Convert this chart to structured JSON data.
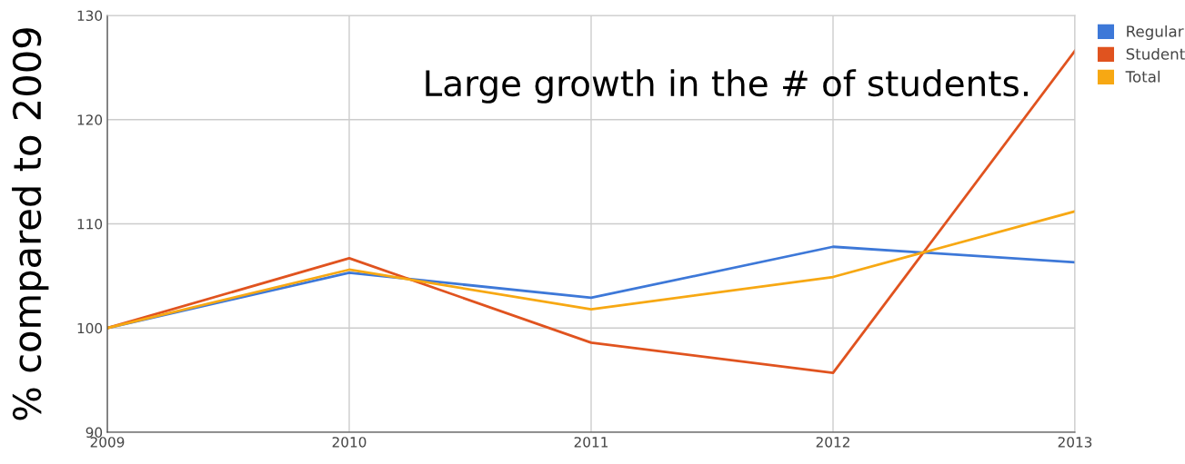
{
  "chart_data": {
    "type": "line",
    "ylabel": "% compared to 2009",
    "annotations": [
      "Large growth in the # of students."
    ],
    "x": [
      2009,
      2010,
      2011,
      2012,
      2013
    ],
    "series": [
      {
        "name": "Regular",
        "color": "#3d78d8",
        "values": [
          100,
          105.3,
          102.9,
          107.8,
          106.3
        ]
      },
      {
        "name": "Student",
        "color": "#e0531f",
        "values": [
          100,
          106.7,
          98.6,
          95.7,
          126.6
        ]
      },
      {
        "name": "Total",
        "color": "#f7a813",
        "values": [
          100,
          105.6,
          101.8,
          104.9,
          111.2
        ]
      }
    ],
    "xlim": [
      2009,
      2013
    ],
    "xticks": [
      2009,
      2010,
      2011,
      2012,
      2013
    ],
    "ylim": [
      90,
      130
    ],
    "yticks": [
      90,
      100,
      110,
      120,
      130
    ],
    "grid": true,
    "legend": "top right",
    "marker": "none",
    "line_style": "solid"
  }
}
